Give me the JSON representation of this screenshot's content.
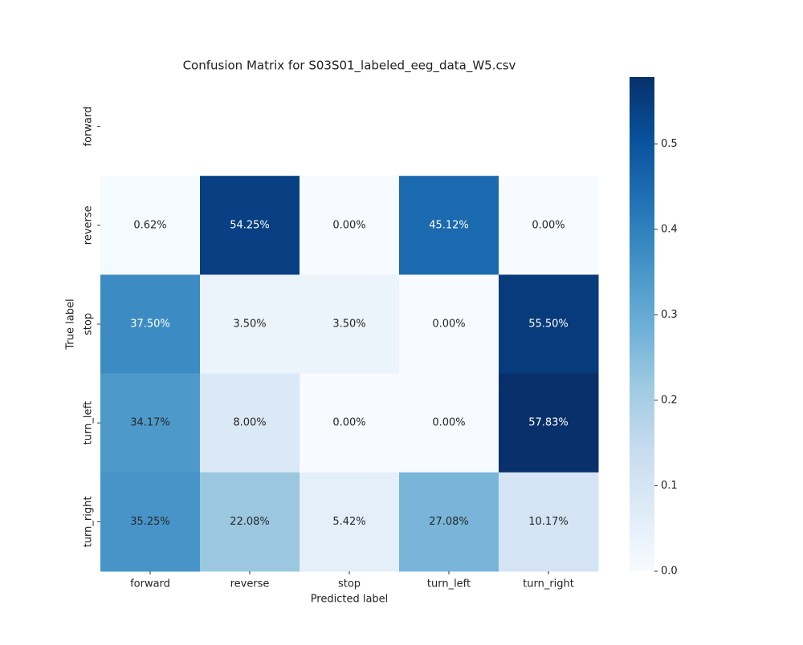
{
  "chart_data": {
    "type": "heatmap",
    "title": "Confusion Matrix for S03S01_labeled_eeg_data_W5.csv",
    "x_label": "Predicted label",
    "y_label": "True label",
    "x_categories": [
      "forward",
      "reverse",
      "stop",
      "turn_left",
      "turn_right"
    ],
    "y_categories": [
      "forward",
      "reverse",
      "stop",
      "turn_left",
      "turn_right"
    ],
    "values": [
      [
        null,
        null,
        null,
        null,
        null
      ],
      [
        0.0062,
        0.5425,
        0.0,
        0.4512,
        0.0
      ],
      [
        0.375,
        0.035,
        0.035,
        0.0,
        0.555
      ],
      [
        0.3417,
        0.08,
        0.0,
        0.0,
        0.5783
      ],
      [
        0.3525,
        0.2208,
        0.0542,
        0.2708,
        0.1017
      ]
    ],
    "value_labels": [
      [
        null,
        null,
        null,
        null,
        null
      ],
      [
        "0.62%",
        "54.25%",
        "0.00%",
        "45.12%",
        "0.00%"
      ],
      [
        "37.50%",
        "3.50%",
        "3.50%",
        "0.00%",
        "55.50%"
      ],
      [
        "34.17%",
        "8.00%",
        "0.00%",
        "0.00%",
        "57.83%"
      ],
      [
        "35.25%",
        "22.08%",
        "5.42%",
        "27.08%",
        "10.17%"
      ]
    ],
    "colormap": "Blues",
    "zlim": [
      0,
      0.5783
    ],
    "zticks": [
      {
        "value": 0,
        "label": "0.0"
      },
      0.1,
      0.2,
      0.3,
      0.4,
      0.5
    ]
  }
}
